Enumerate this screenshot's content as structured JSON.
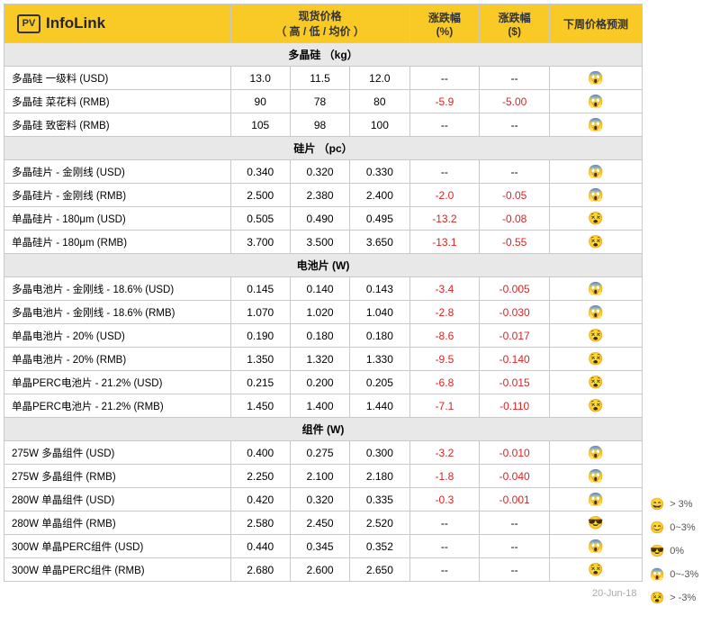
{
  "logo": {
    "badge": "PV",
    "text": "InfoLink"
  },
  "header": {
    "price": "现货价格",
    "price_sub": "（ 高 / 低 / 均价 ）",
    "pct": "涨跌幅",
    "pct_sub": "(%)",
    "abs": "涨跌幅",
    "abs_sub": "($)",
    "forecast": "下周价格预测"
  },
  "sections": [
    {
      "title": "多晶硅 （kg）",
      "rows": [
        {
          "name": "多晶硅 一级料 (USD)",
          "hi": "13.0",
          "lo": "11.5",
          "avg": "12.0",
          "pct": "--",
          "abs": "--",
          "emoji": "😱"
        },
        {
          "name": "多晶硅 菜花料 (RMB)",
          "hi": "90",
          "lo": "78",
          "avg": "80",
          "pct": "-5.9",
          "abs": "-5.00",
          "emoji": "😱"
        },
        {
          "name": "多晶硅 致密料 (RMB)",
          "hi": "105",
          "lo": "98",
          "avg": "100",
          "pct": "--",
          "abs": "--",
          "emoji": "😱"
        }
      ]
    },
    {
      "title": "硅片 （pc）",
      "rows": [
        {
          "name": "多晶硅片 - 金刚线 (USD)",
          "hi": "0.340",
          "lo": "0.320",
          "avg": "0.330",
          "pct": "--",
          "abs": "--",
          "emoji": "😱"
        },
        {
          "name": "多晶硅片 - 金刚线 (RMB)",
          "hi": "2.500",
          "lo": "2.380",
          "avg": "2.400",
          "pct": "-2.0",
          "abs": "-0.05",
          "emoji": "😱"
        },
        {
          "name": "单晶硅片 - 180μm (USD)",
          "hi": "0.505",
          "lo": "0.490",
          "avg": "0.495",
          "pct": "-13.2",
          "abs": "-0.08",
          "emoji": "😵"
        },
        {
          "name": "单晶硅片 - 180μm (RMB)",
          "hi": "3.700",
          "lo": "3.500",
          "avg": "3.650",
          "pct": "-13.1",
          "abs": "-0.55",
          "emoji": "😵"
        }
      ]
    },
    {
      "title": "电池片 (W)",
      "rows": [
        {
          "name": "多晶电池片 - 金刚线 - 18.6% (USD)",
          "hi": "0.145",
          "lo": "0.140",
          "avg": "0.143",
          "pct": "-3.4",
          "abs": "-0.005",
          "emoji": "😱"
        },
        {
          "name": "多晶电池片 - 金刚线 - 18.6% (RMB)",
          "hi": "1.070",
          "lo": "1.020",
          "avg": "1.040",
          "pct": "-2.8",
          "abs": "-0.030",
          "emoji": "😱"
        },
        {
          "name": "单晶电池片 - 20% (USD)",
          "hi": "0.190",
          "lo": "0.180",
          "avg": "0.180",
          "pct": "-8.6",
          "abs": "-0.017",
          "emoji": "😵"
        },
        {
          "name": "单晶电池片 - 20% (RMB)",
          "hi": "1.350",
          "lo": "1.320",
          "avg": "1.330",
          "pct": "-9.5",
          "abs": "-0.140",
          "emoji": "😵"
        },
        {
          "name": "单晶PERC电池片 - 21.2% (USD)",
          "hi": "0.215",
          "lo": "0.200",
          "avg": "0.205",
          "pct": "-6.8",
          "abs": "-0.015",
          "emoji": "😵"
        },
        {
          "name": "单晶PERC电池片 - 21.2% (RMB)",
          "hi": "1.450",
          "lo": "1.400",
          "avg": "1.440",
          "pct": "-7.1",
          "abs": "-0.110",
          "emoji": "😵"
        }
      ]
    },
    {
      "title": "组件 (W)",
      "rows": [
        {
          "name": "275W 多晶组件 (USD)",
          "hi": "0.400",
          "lo": "0.275",
          "avg": "0.300",
          "pct": "-3.2",
          "abs": "-0.010",
          "emoji": "😱"
        },
        {
          "name": "275W 多晶组件 (RMB)",
          "hi": "2.250",
          "lo": "2.100",
          "avg": "2.180",
          "pct": "-1.8",
          "abs": "-0.040",
          "emoji": "😱"
        },
        {
          "name": "280W 单晶组件 (USD)",
          "hi": "0.420",
          "lo": "0.320",
          "avg": "0.335",
          "pct": "-0.3",
          "abs": "-0.001",
          "emoji": "😱"
        },
        {
          "name": "280W 单晶组件 (RMB)",
          "hi": "2.580",
          "lo": "2.450",
          "avg": "2.520",
          "pct": "--",
          "abs": "--",
          "emoji": "😎"
        },
        {
          "name": "300W 单晶PERC组件 (USD)",
          "hi": "0.440",
          "lo": "0.345",
          "avg": "0.352",
          "pct": "--",
          "abs": "--",
          "emoji": "😱"
        },
        {
          "name": "300W 单晶PERC组件 (RMB)",
          "hi": "2.680",
          "lo": "2.600",
          "avg": "2.650",
          "pct": "--",
          "abs": "--",
          "emoji": "😵"
        }
      ]
    }
  ],
  "date": "20-Jun-18",
  "legend": [
    {
      "emoji": "😄",
      "label": "> 3%"
    },
    {
      "emoji": "😊",
      "label": "0~3%"
    },
    {
      "emoji": "😎",
      "label": "0%"
    },
    {
      "emoji": "😱",
      "label": "0~-3%"
    },
    {
      "emoji": "😵",
      "label": "> -3%"
    }
  ],
  "legend_prefix": ">"
}
